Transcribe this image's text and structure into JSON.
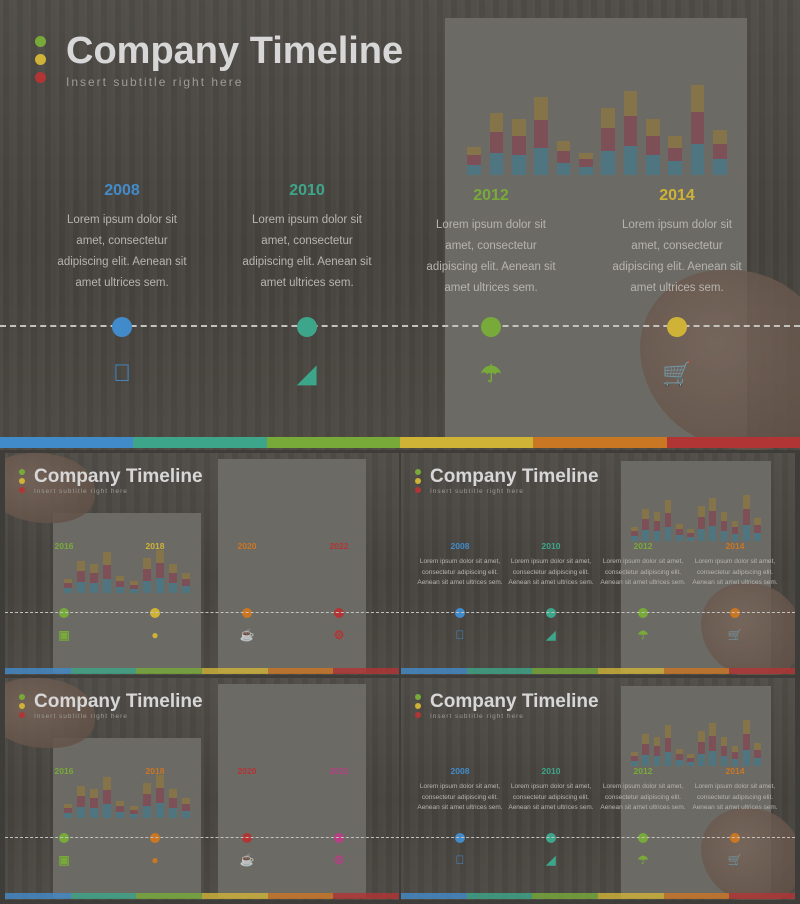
{
  "main": {
    "title": "Company Timeline",
    "subtitle": "Insert subtitle right here",
    "milestones": [
      {
        "year": "2008",
        "color": "#4aa3f0",
        "text": "Lorem ipsum dolor sit amet, consectetur adipiscing elit. Aenean sit amet ultrices sem.",
        "icon": "apple-icon",
        "glyph": ""
      },
      {
        "year": "2010",
        "color": "#44c4a1",
        "text": "Lorem ipsum dolor sit amet, consectetur adipiscing elit. Aenean sit amet ultrices sem.",
        "icon": "rss-icon",
        "glyph": "◢"
      },
      {
        "year": "2012",
        "color": "#8bc93f",
        "text": "Lorem ipsum dolor sit amet, consectetur adipiscing elit. Aenean sit amet ultrices sem.",
        "icon": "umbrella-icon",
        "glyph": "☂"
      },
      {
        "year": "2014",
        "color": "#f6d33c",
        "text": "Lorem ipsum dolor sit amet, consectetur adipiscing elit. Aenean sit amet ultrices sem.",
        "icon": "shopping-cart-icon",
        "glyph": "🛒"
      }
    ],
    "stripe_colors": [
      "#4aa3f0",
      "#44c4a1",
      "#8bc93f",
      "#f6d33c",
      "#f08a24",
      "#d23a3a"
    ]
  },
  "thumbs": [
    {
      "title": "Company Timeline",
      "subtitle": "Insert subtitle right here",
      "milestones": [
        {
          "year": "2016",
          "color": "#8bc93f",
          "icon": "briefcase-icon",
          "glyph": "▣"
        },
        {
          "year": "2018",
          "color": "#f6d33c",
          "icon": "piggy-bank-icon",
          "glyph": "●"
        },
        {
          "year": "2020",
          "color": "#f08a24",
          "icon": "coffee-cup-icon",
          "glyph": "☕"
        },
        {
          "year": "2022",
          "color": "#d23a3a",
          "icon": "gears-icon",
          "glyph": "⚙"
        }
      ],
      "stripe_colors": [
        "#4aa3f0",
        "#44c4a1",
        "#8bc93f",
        "#f6d33c",
        "#f08a24",
        "#d23a3a"
      ]
    },
    {
      "title": "Company Timeline",
      "subtitle": "Insert subtitle right here",
      "milestones": [
        {
          "year": "2008",
          "color": "#4aa3f0",
          "text": "Lorem ipsum dolor sit amet, consectetur adipiscing elit. Aenean sit amet ultrices sem.",
          "icon": "apple-icon",
          "glyph": ""
        },
        {
          "year": "2010",
          "color": "#44c4a1",
          "text": "Lorem ipsum dolor sit amet, consectetur adipiscing elit. Aenean sit amet ultrices sem.",
          "icon": "rss-icon",
          "glyph": "◢"
        },
        {
          "year": "2012",
          "color": "#8bc93f",
          "text": "Lorem ipsum dolor sit amet, consectetur adipiscing elit. Aenean sit amet ultrices sem.",
          "icon": "umbrella-icon",
          "glyph": "☂"
        },
        {
          "year": "2014",
          "color": "#f08a24",
          "text": "Lorem ipsum dolor sit amet, consectetur adipiscing elit. Aenean sit amet ultrices sem.",
          "icon": "shopping-cart-icon",
          "glyph": "🛒"
        }
      ],
      "stripe_colors": [
        "#4aa3f0",
        "#44c4a1",
        "#8bc93f",
        "#f6d33c",
        "#f08a24",
        "#d23a3a"
      ]
    },
    {
      "title": "Company Timeline",
      "subtitle": "Insert subtitle right here",
      "milestones": [
        {
          "year": "2016",
          "color": "#8bc93f",
          "icon": "briefcase-icon",
          "glyph": "▣"
        },
        {
          "year": "2018",
          "color": "#f08a24",
          "icon": "piggy-bank-icon",
          "glyph": "●"
        },
        {
          "year": "2020",
          "color": "#d23a3a",
          "icon": "coffee-cup-icon",
          "glyph": "☕"
        },
        {
          "year": "2022",
          "color": "#d6489a",
          "icon": "gears-icon",
          "glyph": "⚙"
        }
      ],
      "stripe_colors": [
        "#4aa3f0",
        "#44c4a1",
        "#8bc93f",
        "#f6d33c",
        "#f08a24",
        "#d23a3a"
      ]
    },
    {
      "title": "Company Timeline",
      "subtitle": "Insert subtitle right here",
      "milestones": [
        {
          "year": "2008",
          "color": "#4aa3f0",
          "text": "Lorem ipsum dolor sit amet, consectetur adipiscing elit. Aenean sit amet ultrices sem.",
          "icon": "apple-icon",
          "glyph": ""
        },
        {
          "year": "2010",
          "color": "#44c4a1",
          "text": "Lorem ipsum dolor sit amet, consectetur adipiscing elit. Aenean sit amet ultrices sem.",
          "icon": "rss-icon",
          "glyph": "◢"
        },
        {
          "year": "2012",
          "color": "#8bc93f",
          "text": "Lorem ipsum dolor sit amet, consectetur adipiscing elit. Aenean sit amet ultrices sem.",
          "icon": "umbrella-icon",
          "glyph": "☂"
        },
        {
          "year": "2014",
          "color": "#f08a24",
          "text": "Lorem ipsum dolor sit amet, consectetur adipiscing elit. Aenean sit amet ultrices sem.",
          "icon": "shopping-cart-icon",
          "glyph": "🛒"
        }
      ],
      "stripe_colors": [
        "#4aa3f0",
        "#44c4a1",
        "#8bc93f",
        "#f6d33c",
        "#f08a24",
        "#d23a3a"
      ]
    }
  ]
}
